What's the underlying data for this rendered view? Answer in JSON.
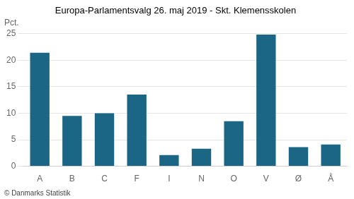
{
  "chart_data": {
    "type": "bar",
    "title": "Europa-Parlamentsvalg 26. maj 2019 - Skt. Klemensskolen",
    "ylabel": "Pct.",
    "footer": "© Danmarks Statistik",
    "categories": [
      "A",
      "B",
      "C",
      "F",
      "I",
      "N",
      "O",
      "V",
      "Ø",
      "Å"
    ],
    "values": [
      21.4,
      9.5,
      10.0,
      13.5,
      2.1,
      3.3,
      8.5,
      24.8,
      3.6,
      4.1
    ],
    "color": "#1b6585",
    "ylim": [
      0,
      25
    ],
    "yticks": [
      0,
      5,
      10,
      15,
      20,
      25
    ],
    "grid": true
  }
}
